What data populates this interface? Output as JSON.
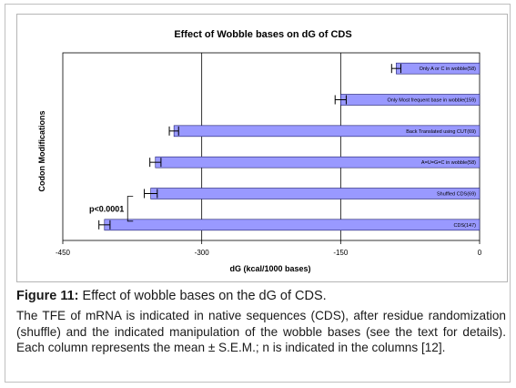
{
  "chart_data": {
    "type": "bar",
    "orientation": "horizontal",
    "title": "Effect of Wobble bases on dG of CDS",
    "xlabel": "dG (kcal/1000 bases)",
    "ylabel": "Codon Modifications",
    "xlim": [
      -450,
      0
    ],
    "xticks": [
      -450,
      -300,
      -150,
      0
    ],
    "xtick_labels": [
      "-450",
      "-300",
      "-150",
      "0"
    ],
    "categories": [
      "Only A or C in wobble(58)",
      "Only Most frequent base in wobble(159)",
      "Back Translated using CUT(69)",
      "A=U=G=C in wobble(58)",
      "Shuffled CDS(69)",
      "CDS(147)"
    ],
    "values": [
      -90,
      -150,
      -330,
      -350,
      -355,
      -405
    ],
    "sem": [
      5,
      6,
      5,
      6,
      7,
      6
    ],
    "bar_color": "#9999ff",
    "grid": "vertical",
    "annotation": "p<0.0001"
  },
  "caption": {
    "label": "Figure 11:",
    "title": "Effect of wobble bases on the dG of CDS.",
    "body": "The TFE of mRNA is indicated in native sequences (CDS), after residue randomization (shuffle) and the indicated manipulation of the wobble bases (see the text for details). Each column represents the mean ± S.E.M.; n is indicated in the columns [12]."
  }
}
